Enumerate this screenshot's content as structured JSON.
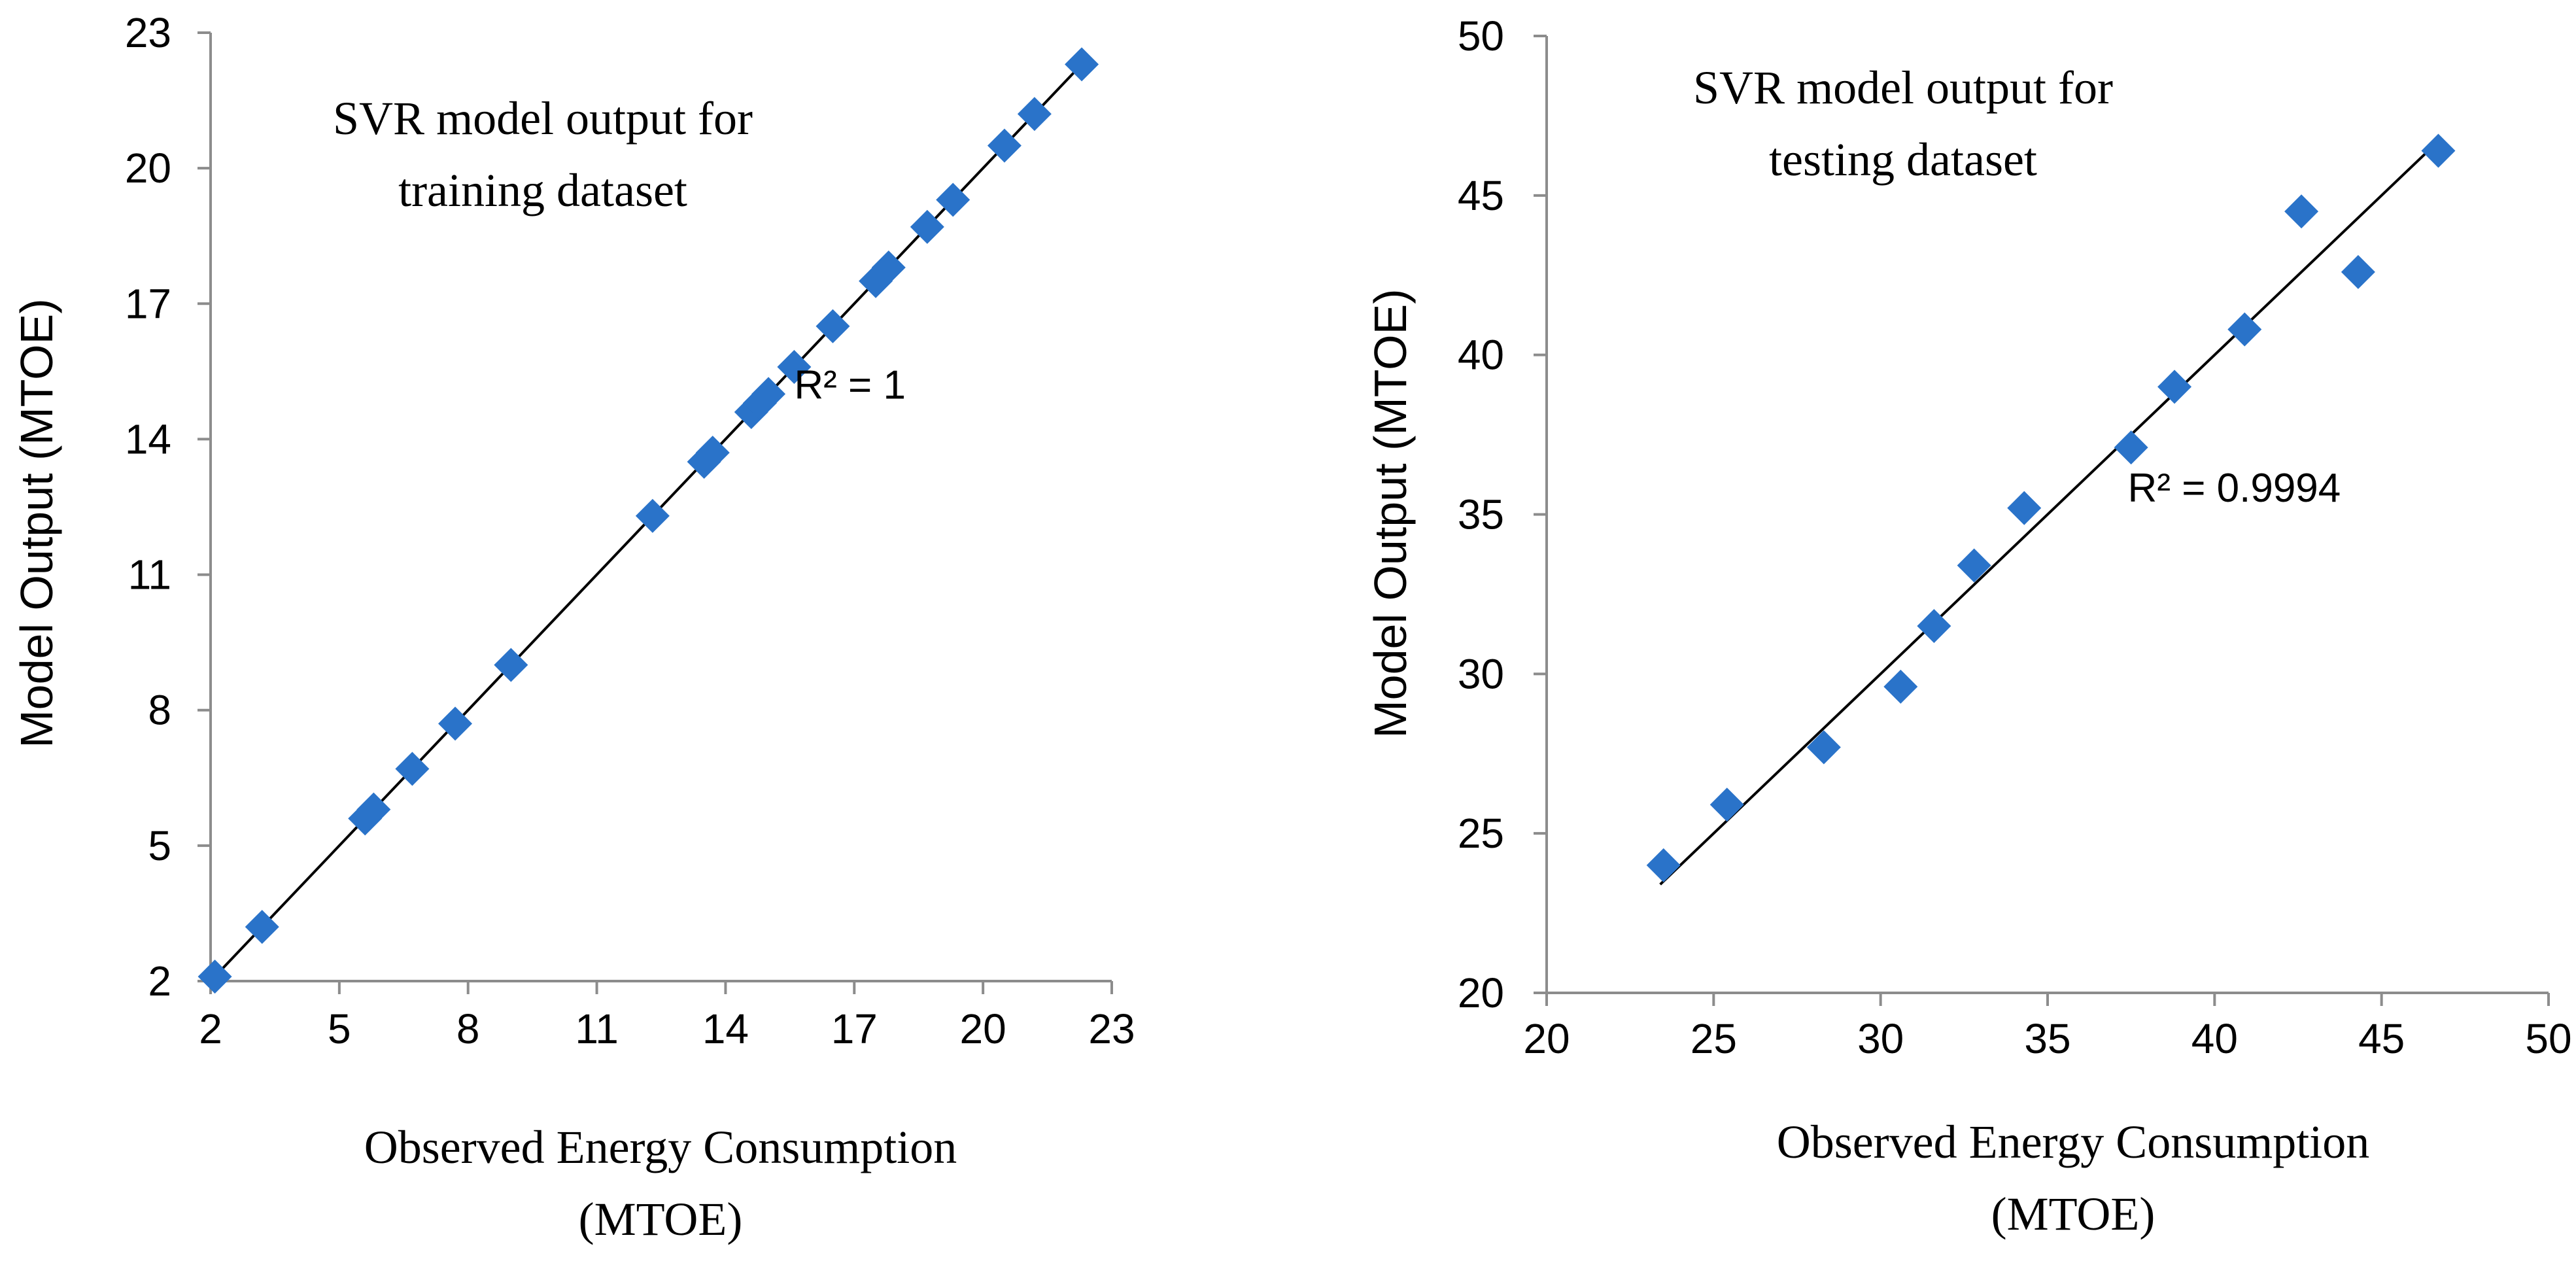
{
  "chart_data": [
    {
      "type": "scatter",
      "title_lines": [
        "SVR model output for",
        "training dataset"
      ],
      "xlabel_lines": [
        "Observed Energy Consumption",
        "(MTOE)"
      ],
      "ylabel": "Model Output (MTOE)",
      "xlim": [
        2,
        23
      ],
      "ylim": [
        2,
        23
      ],
      "xticks": [
        2,
        5,
        8,
        11,
        14,
        17,
        20,
        23
      ],
      "yticks": [
        2,
        5,
        8,
        11,
        14,
        17,
        20,
        23
      ],
      "xtick_labels": [
        "2",
        "5",
        "8",
        "11",
        "14",
        "17",
        "20",
        "23"
      ],
      "ytick_labels": [
        "2",
        "5",
        "8",
        "11",
        "14",
        "17",
        "20",
        "23"
      ],
      "annotation": "R² = 1",
      "annotation_at": [
        15.6,
        14.9
      ],
      "trendline": {
        "slope": 1.0,
        "intercept": 0.0,
        "x_range": [
          2.1,
          22.4
        ]
      },
      "marker_color": "#2a73c9",
      "points": {
        "x": [
          2.1,
          3.2,
          5.6,
          5.8,
          6.7,
          7.7,
          9.0,
          12.3,
          13.5,
          13.7,
          14.6,
          14.8,
          15.0,
          15.6,
          16.5,
          17.5,
          17.8,
          18.7,
          19.3,
          20.5,
          21.2,
          22.3
        ],
        "y": [
          2.1,
          3.2,
          5.6,
          5.8,
          6.7,
          7.7,
          9.0,
          12.3,
          13.5,
          13.7,
          14.6,
          14.8,
          15.0,
          15.6,
          16.5,
          17.5,
          17.8,
          18.7,
          19.3,
          20.5,
          21.2,
          22.3
        ]
      }
    },
    {
      "type": "scatter",
      "title_lines": [
        "SVR model output for",
        "testing dataset"
      ],
      "xlabel_lines": [
        "Observed Energy Consumption",
        "(MTOE)"
      ],
      "ylabel": "Model Output (MTOE)",
      "xlim": [
        20,
        50
      ],
      "ylim": [
        20,
        50
      ],
      "xticks": [
        20,
        25,
        30,
        35,
        40,
        45,
        50
      ],
      "yticks": [
        20,
        25,
        30,
        35,
        40,
        45,
        50
      ],
      "xtick_labels": [
        "20",
        "25",
        "30",
        "35",
        "40",
        "45",
        "50"
      ],
      "ytick_labels": [
        "20",
        "25",
        "30",
        "35",
        "40",
        "45",
        "50"
      ],
      "annotation": "R² = 0.9994",
      "annotation_at": [
        37.4,
        35.4
      ],
      "trendline": {
        "slope": 1.0,
        "intercept": 0.0,
        "x_range": [
          23.4,
          46.7
        ]
      },
      "marker_color": "#2a73c9",
      "points": {
        "x": [
          23.5,
          25.4,
          28.3,
          30.6,
          31.6,
          32.8,
          34.3,
          37.5,
          38.8,
          40.9,
          42.6,
          44.3,
          46.7
        ],
        "y": [
          24.0,
          25.9,
          27.7,
          29.6,
          31.5,
          33.4,
          35.2,
          37.1,
          39.0,
          40.8,
          44.5,
          42.6,
          46.4
        ]
      }
    }
  ]
}
